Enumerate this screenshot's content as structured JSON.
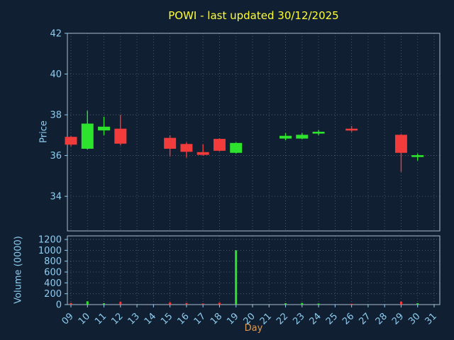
{
  "colors": {
    "background": "#101f31",
    "title": "#ffff33",
    "tick_label": "#8ecdf0",
    "axis_label": "#8ecdf0",
    "day_label": "#de9b54",
    "grid": "#8fa0b2",
    "spine": "#a8bccd",
    "up": "#2ee32e",
    "down": "#f23b3b"
  },
  "chart_data": {
    "type": "candlestick",
    "title": "POWI - last updated 30/12/2025",
    "xlabel": "Day",
    "x_tick_labels": [
      "09",
      "10",
      "11",
      "12",
      "13",
      "14",
      "15",
      "16",
      "17",
      "18",
      "19",
      "20",
      "21",
      "22",
      "23",
      "24",
      "25",
      "26",
      "27",
      "28",
      "29",
      "30",
      "31"
    ],
    "price": {
      "ylabel": "Price",
      "ylim": [
        32.3,
        42
      ],
      "yticks": [
        34,
        36,
        38,
        40,
        42
      ],
      "grid": true,
      "candles": [
        {
          "day": 9,
          "open": 36.9,
          "high": 36.95,
          "low": 36.45,
          "close": 36.55
        },
        {
          "day": 10,
          "open": 36.35,
          "high": 38.2,
          "low": 36.3,
          "close": 37.55
        },
        {
          "day": 11,
          "open": 37.25,
          "high": 37.9,
          "low": 37.0,
          "close": 37.4
        },
        {
          "day": 12,
          "open": 37.3,
          "high": 38.0,
          "low": 36.5,
          "close": 36.6
        },
        {
          "day": 15,
          "open": 36.85,
          "high": 37.0,
          "low": 35.95,
          "close": 36.35
        },
        {
          "day": 16,
          "open": 36.55,
          "high": 36.65,
          "low": 35.9,
          "close": 36.2
        },
        {
          "day": 17,
          "open": 36.15,
          "high": 36.55,
          "low": 36.0,
          "close": 36.05
        },
        {
          "day": 18,
          "open": 36.8,
          "high": 36.85,
          "low": 36.2,
          "close": 36.25
        },
        {
          "day": 19,
          "open": 36.15,
          "high": 36.65,
          "low": 36.1,
          "close": 36.6
        },
        {
          "day": 22,
          "open": 36.85,
          "high": 37.1,
          "low": 36.75,
          "close": 36.95
        },
        {
          "day": 23,
          "open": 36.85,
          "high": 37.1,
          "low": 36.8,
          "close": 37.0
        },
        {
          "day": 24,
          "open": 37.1,
          "high": 37.25,
          "low": 37.0,
          "close": 37.15
        },
        {
          "day": 26,
          "open": 37.3,
          "high": 37.45,
          "low": 37.15,
          "close": 37.25
        },
        {
          "day": 29,
          "open": 37.0,
          "high": 37.05,
          "low": 35.2,
          "close": 36.15
        },
        {
          "day": 30,
          "open": 35.95,
          "high": 36.1,
          "low": 35.75,
          "close": 36.0
        }
      ]
    },
    "volume": {
      "ylabel": "Volume (0000)",
      "ylim": [
        0,
        1266
      ],
      "yticks": [
        0,
        200,
        400,
        600,
        800,
        1000,
        1200
      ],
      "grid": true,
      "bars": [
        {
          "day": 9,
          "value": 30,
          "direction": "down"
        },
        {
          "day": 10,
          "value": 60,
          "direction": "up"
        },
        {
          "day": 11,
          "value": 25,
          "direction": "up"
        },
        {
          "day": 12,
          "value": 50,
          "direction": "down"
        },
        {
          "day": 15,
          "value": 40,
          "direction": "down"
        },
        {
          "day": 16,
          "value": 30,
          "direction": "down"
        },
        {
          "day": 17,
          "value": 20,
          "direction": "down"
        },
        {
          "day": 18,
          "value": 35,
          "direction": "down"
        },
        {
          "day": 19,
          "value": 1000,
          "direction": "up"
        },
        {
          "day": 22,
          "value": 25,
          "direction": "up"
        },
        {
          "day": 23,
          "value": 30,
          "direction": "up"
        },
        {
          "day": 24,
          "value": 20,
          "direction": "up"
        },
        {
          "day": 26,
          "value": 15,
          "direction": "down"
        },
        {
          "day": 29,
          "value": 55,
          "direction": "down"
        },
        {
          "day": 30,
          "value": 25,
          "direction": "up"
        }
      ]
    }
  }
}
